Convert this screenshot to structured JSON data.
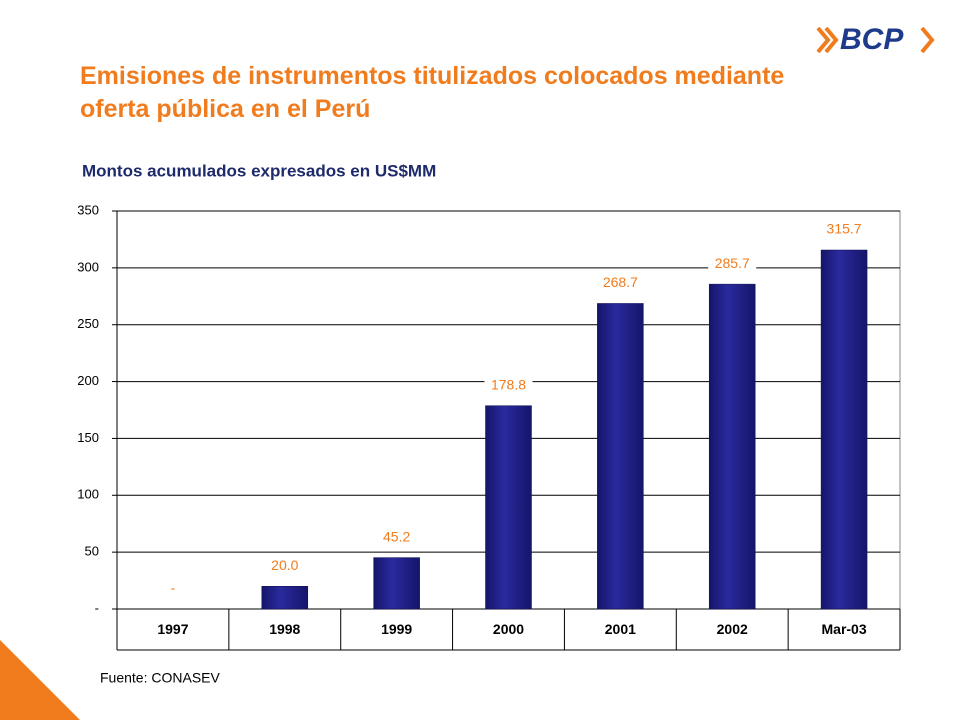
{
  "logo": "BCP",
  "chart_data": {
    "type": "bar",
    "title": "Emisiones de instrumentos titulizados colocados mediante oferta pública en el Perú",
    "subtitle": "Montos acumulados expresados en US$MM",
    "categories": [
      "1997",
      "1998",
      "1999",
      "2000",
      "2001",
      "2002",
      "Mar-03"
    ],
    "values": [
      0,
      20.0,
      45.2,
      178.8,
      268.7,
      285.7,
      315.7
    ],
    "value_labels": [
      "-",
      "20.0",
      "45.2",
      "178.8",
      "268.7",
      "285.7",
      "315.7"
    ],
    "color": "#232389",
    "ylim": [
      0,
      350
    ],
    "yticks": [
      {
        "value": 0,
        "label": "-"
      },
      50,
      100,
      150,
      200,
      250,
      300,
      350
    ],
    "grid": true,
    "source": "Fuente: CONASEV"
  }
}
